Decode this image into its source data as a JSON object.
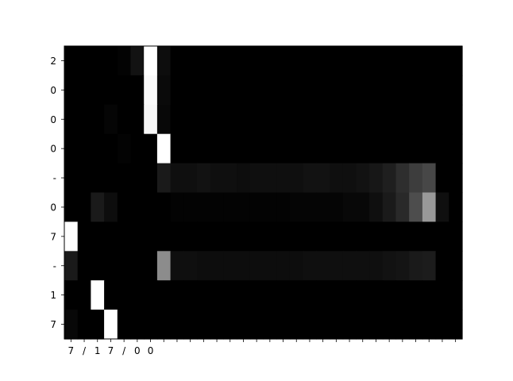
{
  "chart_data": {
    "type": "heatmap",
    "title": "",
    "xlabel": "",
    "ylabel": "",
    "colormap": "gray",
    "color_range": [
      0,
      1
    ],
    "grid": false,
    "x_tick_labels": [
      "7",
      "/",
      "1",
      "7",
      "/",
      "0",
      "0",
      "",
      "",
      "",
      "",
      "",
      "",
      "",
      "",
      "",
      "",
      "",
      "",
      "",
      "",
      "",
      "",
      "",
      "",
      "",
      "",
      "",
      "",
      ""
    ],
    "y_tick_labels": [
      "2",
      "0",
      "0",
      "0",
      "-",
      "0",
      "7",
      "-",
      "1",
      "7"
    ],
    "rows": [
      [
        0,
        0,
        0,
        0,
        0.01,
        0.07,
        1.0,
        0.05,
        0,
        0,
        0,
        0,
        0,
        0,
        0,
        0,
        0,
        0,
        0,
        0,
        0,
        0,
        0,
        0,
        0,
        0,
        0,
        0,
        0,
        0
      ],
      [
        0,
        0,
        0,
        0,
        0,
        0,
        0.98,
        0.04,
        0,
        0,
        0,
        0,
        0,
        0,
        0,
        0,
        0,
        0,
        0,
        0,
        0,
        0,
        0,
        0,
        0,
        0,
        0,
        0,
        0,
        0
      ],
      [
        0,
        0,
        0,
        0.02,
        0,
        0,
        0.97,
        0.03,
        0,
        0,
        0,
        0,
        0,
        0,
        0,
        0,
        0,
        0,
        0,
        0,
        0,
        0,
        0,
        0,
        0,
        0,
        0,
        0,
        0,
        0
      ],
      [
        0,
        0,
        0,
        0,
        0.01,
        0,
        0,
        1.0,
        0,
        0,
        0,
        0,
        0,
        0,
        0,
        0,
        0,
        0,
        0,
        0,
        0,
        0,
        0,
        0,
        0,
        0,
        0,
        0,
        0,
        0
      ],
      [
        0,
        0,
        0,
        0,
        0,
        0,
        0,
        0.1,
        0.06,
        0.06,
        0.07,
        0.06,
        0.06,
        0.05,
        0.06,
        0.06,
        0.06,
        0.06,
        0.07,
        0.07,
        0.06,
        0.06,
        0.07,
        0.09,
        0.12,
        0.18,
        0.24,
        0.28,
        0,
        0
      ],
      [
        0,
        0,
        0.1,
        0.05,
        0,
        0,
        0,
        0,
        0.01,
        0.01,
        0.01,
        0.01,
        0.01,
        0.01,
        0.01,
        0.01,
        0.01,
        0.02,
        0.02,
        0.02,
        0.02,
        0.03,
        0.03,
        0.06,
        0.1,
        0.16,
        0.3,
        0.6,
        0.06,
        0
      ],
      [
        1.0,
        0,
        0,
        0,
        0,
        0,
        0,
        0,
        0,
        0,
        0,
        0,
        0,
        0,
        0,
        0,
        0,
        0,
        0,
        0,
        0,
        0,
        0,
        0,
        0,
        0,
        0,
        0,
        0,
        0
      ],
      [
        0.1,
        0,
        0,
        0,
        0,
        0,
        0,
        0.55,
        0.06,
        0.06,
        0.05,
        0.05,
        0.05,
        0.05,
        0.05,
        0.05,
        0.05,
        0.05,
        0.06,
        0.06,
        0.06,
        0.06,
        0.06,
        0.06,
        0.07,
        0.08,
        0.1,
        0.11,
        0,
        0
      ],
      [
        0,
        0,
        1.0,
        0,
        0,
        0,
        0,
        0,
        0,
        0,
        0,
        0,
        0,
        0,
        0,
        0,
        0,
        0,
        0,
        0,
        0,
        0,
        0,
        0,
        0,
        0,
        0,
        0,
        0,
        0
      ],
      [
        0.03,
        0,
        0,
        1.0,
        0,
        0,
        0,
        0,
        0,
        0,
        0,
        0,
        0,
        0,
        0,
        0,
        0,
        0,
        0,
        0,
        0,
        0,
        0,
        0,
        0,
        0,
        0,
        0,
        0,
        0
      ]
    ]
  }
}
